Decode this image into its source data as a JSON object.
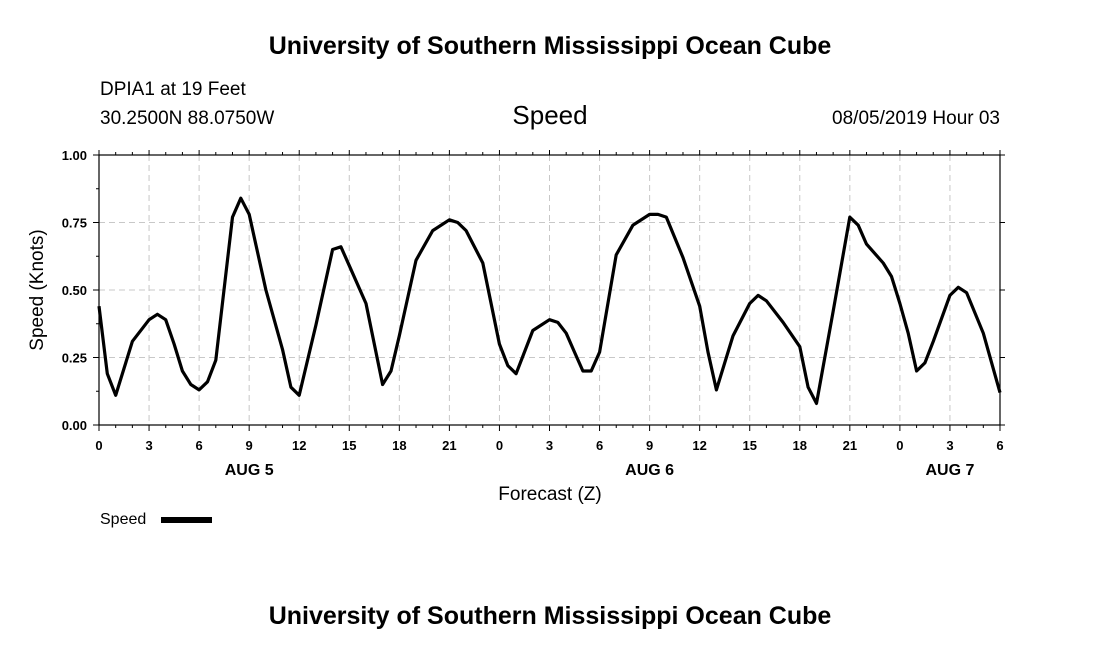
{
  "header": {
    "title": "University of Southern Mississippi Ocean Cube",
    "station": "DPIA1 at 19 Feet",
    "coords": "30.2500N 88.0750W",
    "date": "08/05/2019 Hour 03"
  },
  "footer": {
    "title": "University of Southern Mississippi Ocean Cube"
  },
  "legend": {
    "label": "Speed"
  },
  "colors": {
    "line": "#000000",
    "grid": "#c8c8c8",
    "background": "#ffffff"
  },
  "chart_data": {
    "type": "line",
    "title": "Speed",
    "xlabel": "Forecast (Z)",
    "ylabel": "Speed (Knots)",
    "ylim": [
      0,
      1
    ],
    "yticks": [
      "0.00",
      "0.25",
      "0.50",
      "0.75",
      "1.00"
    ],
    "xticks": [
      "0",
      "3",
      "6",
      "9",
      "12",
      "15",
      "18",
      "21",
      "0",
      "3",
      "6",
      "9",
      "12",
      "15",
      "18",
      "21",
      "0",
      "3",
      "6"
    ],
    "day_labels": [
      "AUG 5",
      "AUG 6",
      "AUG 7"
    ],
    "grid": true,
    "legend_position": "bottom-left",
    "series": [
      {
        "name": "Speed",
        "x_hours": [
          0,
          0.5,
          1,
          2,
          3,
          3.5,
          4,
          4.5,
          5,
          5.5,
          6,
          6.5,
          7,
          8,
          8.5,
          9,
          10,
          11,
          11.5,
          12,
          13,
          14,
          14.5,
          15,
          16,
          17,
          17.5,
          18,
          19,
          20,
          21,
          21.5,
          22,
          23,
          24,
          24.5,
          25,
          26,
          27,
          27.5,
          28,
          28.5,
          29,
          29.5,
          30,
          31,
          32,
          33,
          33.5,
          34,
          35,
          36,
          36.5,
          37,
          38,
          39,
          39.5,
          40,
          41,
          42,
          42.5,
          43,
          44,
          45,
          45.5,
          46,
          47,
          47.5,
          48,
          48.5,
          49,
          49.5,
          50,
          51,
          51.5,
          52,
          53,
          54
        ],
        "values": [
          0.44,
          0.19,
          0.11,
          0.31,
          0.39,
          0.41,
          0.39,
          0.3,
          0.2,
          0.15,
          0.13,
          0.16,
          0.24,
          0.77,
          0.84,
          0.78,
          0.5,
          0.28,
          0.14,
          0.11,
          0.37,
          0.65,
          0.66,
          0.59,
          0.45,
          0.15,
          0.2,
          0.33,
          0.61,
          0.72,
          0.76,
          0.75,
          0.72,
          0.6,
          0.3,
          0.22,
          0.19,
          0.35,
          0.39,
          0.38,
          0.34,
          0.27,
          0.2,
          0.2,
          0.27,
          0.63,
          0.74,
          0.78,
          0.78,
          0.77,
          0.62,
          0.44,
          0.27,
          0.13,
          0.33,
          0.45,
          0.48,
          0.46,
          0.38,
          0.29,
          0.14,
          0.08,
          0.42,
          0.77,
          0.74,
          0.67,
          0.6,
          0.55,
          0.45,
          0.34,
          0.2,
          0.23,
          0.31,
          0.48,
          0.51,
          0.49,
          0.34,
          0.12
        ]
      }
    ]
  }
}
